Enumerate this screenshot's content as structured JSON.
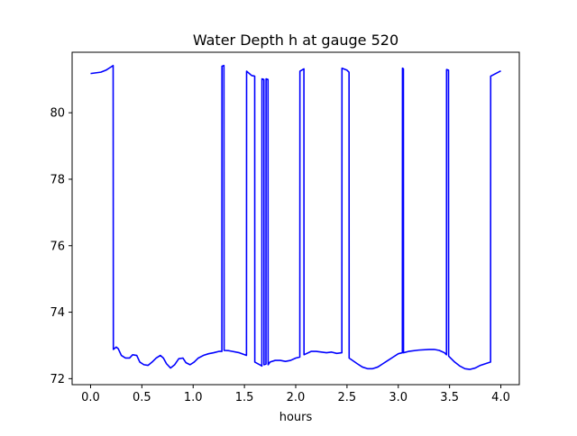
{
  "chart_data": {
    "type": "line",
    "title": "Water Depth h at gauge 520",
    "xlabel": "hours",
    "ylabel": "",
    "xlim": [
      -0.18,
      4.18
    ],
    "ylim": [
      71.82,
      81.82
    ],
    "x_ticks": [
      0.0,
      0.5,
      1.0,
      1.5,
      2.0,
      2.5,
      3.0,
      3.5,
      4.0
    ],
    "x_tick_labels": [
      "0.0",
      "0.5",
      "1.0",
      "1.5",
      "2.0",
      "2.5",
      "3.0",
      "3.5",
      "4.0"
    ],
    "y_ticks": [
      72,
      74,
      76,
      78,
      80
    ],
    "y_tick_labels": [
      "72",
      "74",
      "76",
      "78",
      "80"
    ],
    "grid": false,
    "legend": "none",
    "colors": {
      "line": "#0000ff",
      "axes": "#000000",
      "background": "#ffffff"
    },
    "series": [
      {
        "color": "#0000ff",
        "x": [
          0.0,
          0.05,
          0.1,
          0.15,
          0.2,
          0.22,
          0.222,
          0.25,
          0.27,
          0.3,
          0.34,
          0.38,
          0.41,
          0.45,
          0.48,
          0.52,
          0.56,
          0.6,
          0.64,
          0.68,
          0.71,
          0.74,
          0.78,
          0.82,
          0.86,
          0.9,
          0.93,
          0.97,
          1.01,
          1.05,
          1.1,
          1.15,
          1.2,
          1.25,
          1.28,
          1.281,
          1.3,
          1.302,
          1.35,
          1.45,
          1.52,
          1.521,
          1.57,
          1.6,
          1.601,
          1.66,
          1.67,
          1.671,
          1.69,
          1.691,
          1.71,
          1.711,
          1.73,
          1.731,
          1.75,
          1.8,
          1.85,
          1.9,
          1.95,
          2.0,
          2.04,
          2.041,
          2.08,
          2.081,
          2.15,
          2.2,
          2.3,
          2.35,
          2.4,
          2.45,
          2.451,
          2.5,
          2.52,
          2.521,
          2.6,
          2.65,
          2.7,
          2.75,
          2.8,
          2.85,
          2.9,
          2.95,
          3.0,
          3.04,
          3.041,
          3.05,
          3.051,
          3.1,
          3.2,
          3.3,
          3.35,
          3.4,
          3.45,
          3.47,
          3.471,
          3.49,
          3.491,
          3.55,
          3.6,
          3.65,
          3.7,
          3.75,
          3.8,
          3.85,
          3.9,
          3.901,
          4.0
        ],
        "y": [
          81.18,
          81.2,
          81.22,
          81.28,
          81.38,
          81.42,
          72.88,
          72.95,
          72.9,
          72.7,
          72.62,
          72.62,
          72.72,
          72.7,
          72.5,
          72.42,
          72.4,
          72.5,
          72.62,
          72.7,
          72.62,
          72.45,
          72.32,
          72.42,
          72.6,
          72.62,
          72.48,
          72.42,
          72.5,
          72.62,
          72.7,
          72.75,
          72.78,
          72.82,
          72.82,
          81.4,
          81.42,
          72.85,
          72.84,
          72.78,
          72.7,
          81.25,
          81.12,
          81.1,
          72.5,
          72.4,
          72.38,
          81.02,
          81.0,
          72.42,
          72.44,
          81.02,
          81.0,
          72.42,
          72.5,
          72.55,
          72.55,
          72.52,
          72.55,
          72.62,
          72.65,
          81.25,
          81.32,
          72.72,
          72.82,
          72.82,
          72.78,
          72.8,
          72.76,
          72.78,
          81.34,
          81.28,
          81.22,
          72.62,
          72.45,
          72.35,
          72.3,
          72.3,
          72.35,
          72.45,
          72.55,
          72.65,
          72.75,
          72.78,
          81.34,
          81.32,
          72.78,
          72.82,
          72.86,
          72.88,
          72.88,
          72.85,
          72.78,
          72.72,
          81.3,
          81.28,
          72.68,
          72.5,
          72.38,
          72.3,
          72.28,
          72.32,
          72.4,
          72.45,
          72.5,
          81.1,
          81.26
        ]
      }
    ]
  }
}
